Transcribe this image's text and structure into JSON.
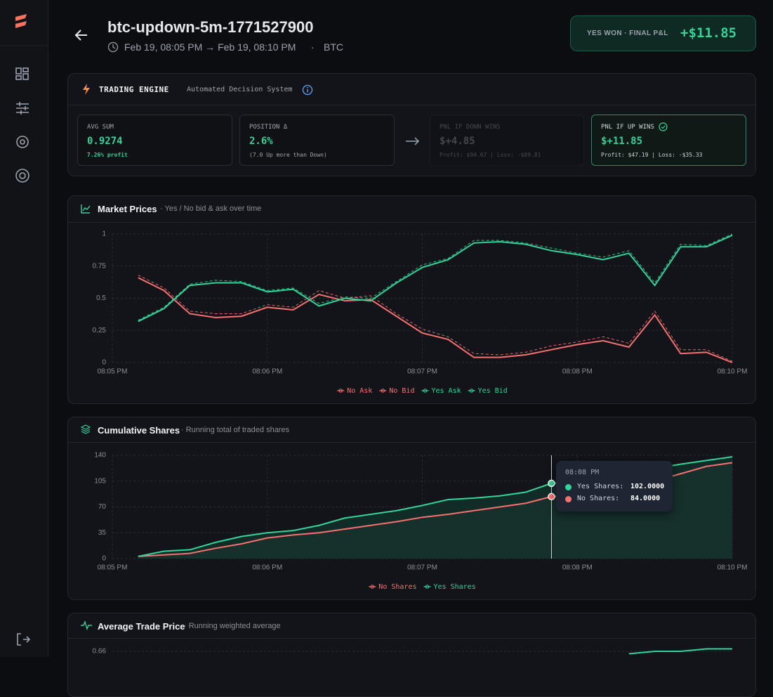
{
  "header": {
    "title": "btc-updown-5m-1771527900",
    "time_range": "Feb 19, 08:05 PM → Feb 19, 08:10 PM",
    "separator": "·",
    "asset": "BTC"
  },
  "result": {
    "label": "YES WON · FINAL P&L",
    "value": "+$11.85"
  },
  "engine": {
    "title": "TRADING ENGINE",
    "subtitle": "Automated Decision System",
    "cards": [
      {
        "label": "AVG SUM",
        "value": "0.9274",
        "note": "7.26% profit"
      },
      {
        "label": "POSITION Δ",
        "value": "2.6%",
        "note": "(7.0 Up more than Down)"
      },
      {
        "label": "PNL IF DOWN WINS",
        "value": "$+4.85",
        "note": "Profit: $94.67 | Loss: -$89.81"
      },
      {
        "label": "PNL IF UP WINS",
        "value": "$+11.85",
        "note": "Profit: $47.19 | Loss: -$35.33"
      }
    ]
  },
  "chart_data": [
    {
      "type": "line",
      "title": "Market Prices",
      "subtitle": "· Yes / No bid & ask over time",
      "categories": [
        "08:05 PM",
        null,
        null,
        null,
        null,
        null,
        "08:06 PM",
        null,
        null,
        null,
        null,
        null,
        "08:07 PM",
        null,
        null,
        null,
        null,
        null,
        "08:08 PM",
        null,
        null,
        null,
        null,
        null,
        "08:10 PM"
      ],
      "ylim": [
        0,
        1
      ],
      "yticks": [
        0,
        0.25,
        0.5,
        0.75,
        1
      ],
      "grid": true,
      "series": [
        {
          "name": "No Ask",
          "color": "#f87171",
          "style": "dashed",
          "values": [
            null,
            0.68,
            0.58,
            0.4,
            0.38,
            0.38,
            0.45,
            0.43,
            0.56,
            0.5,
            0.52,
            0.38,
            0.26,
            0.2,
            0.07,
            0.06,
            0.08,
            0.13,
            0.16,
            0.2,
            0.15,
            0.4,
            0.1,
            0.1,
            0.01
          ]
        },
        {
          "name": "No Bid",
          "color": "#f87171",
          "style": "solid",
          "values": [
            null,
            0.66,
            0.56,
            0.38,
            0.35,
            0.36,
            0.43,
            0.41,
            0.53,
            0.48,
            0.49,
            0.36,
            0.23,
            0.18,
            0.04,
            0.04,
            0.06,
            0.1,
            0.14,
            0.17,
            0.12,
            0.37,
            0.07,
            0.08,
            0
          ]
        },
        {
          "name": "Yes Ask",
          "color": "#34d399",
          "style": "dashed",
          "values": [
            null,
            0.33,
            0.43,
            0.61,
            0.64,
            0.63,
            0.56,
            0.58,
            0.46,
            0.51,
            0.5,
            0.63,
            0.76,
            0.81,
            0.95,
            0.95,
            0.93,
            0.89,
            0.85,
            0.82,
            0.87,
            0.62,
            0.92,
            0.91,
            1
          ]
        },
        {
          "name": "Yes Bid",
          "color": "#34d399",
          "style": "solid",
          "values": [
            null,
            0.32,
            0.42,
            0.6,
            0.62,
            0.62,
            0.55,
            0.57,
            0.44,
            0.5,
            0.48,
            0.62,
            0.74,
            0.8,
            0.93,
            0.94,
            0.92,
            0.87,
            0.84,
            0.8,
            0.85,
            0.6,
            0.9,
            0.9,
            0.99
          ]
        }
      ]
    },
    {
      "type": "area",
      "title": "Cumulative Shares",
      "subtitle": "· Running total of traded shares",
      "categories": [
        "08:05 PM",
        null,
        null,
        null,
        null,
        null,
        "08:06 PM",
        null,
        null,
        null,
        null,
        null,
        "08:07 PM",
        null,
        null,
        null,
        null,
        null,
        "08:08 PM",
        null,
        null,
        null,
        null,
        null,
        "08:10 PM"
      ],
      "ylim": [
        0,
        140
      ],
      "yticks": [
        0,
        35,
        70,
        105,
        140
      ],
      "grid": true,
      "series": [
        {
          "name": "No Shares",
          "color": "#f87171",
          "fill": "#3a3a3c",
          "values": [
            null,
            3,
            5,
            7,
            14,
            20,
            28,
            32,
            35,
            40,
            45,
            50,
            56,
            60,
            65,
            70,
            75,
            84,
            86,
            88,
            95,
            105,
            115,
            125,
            130
          ]
        },
        {
          "name": "Yes Shares",
          "color": "#34d399",
          "fill": "#12302a",
          "values": [
            null,
            3,
            10,
            12,
            22,
            30,
            35,
            38,
            45,
            55,
            60,
            65,
            72,
            80,
            82,
            85,
            90,
            102,
            104,
            108,
            115,
            122,
            128,
            133,
            138
          ]
        }
      ],
      "tooltip": {
        "title": "08:08 PM",
        "items": [
          {
            "label": "Yes Shares:",
            "value": "102.0000",
            "color": "#34d399"
          },
          {
            "label": "No Shares:",
            "value": "84.0000",
            "color": "#f87171"
          }
        ]
      }
    },
    {
      "type": "line",
      "title": "Average Trade Price",
      "subtitle": "· Running weighted average",
      "ylim": [
        0.6,
        0.662
      ],
      "yticks": [
        0.66
      ],
      "grid": true,
      "series": [
        {
          "color": "#34d399",
          "style": "solid",
          "values": [
            null,
            null,
            null,
            null,
            null,
            null,
            null,
            null,
            null,
            null,
            null,
            null,
            null,
            null,
            null,
            null,
            null,
            null,
            null,
            null,
            0.659,
            0.66,
            0.66,
            0.661,
            0.661
          ]
        }
      ]
    }
  ]
}
